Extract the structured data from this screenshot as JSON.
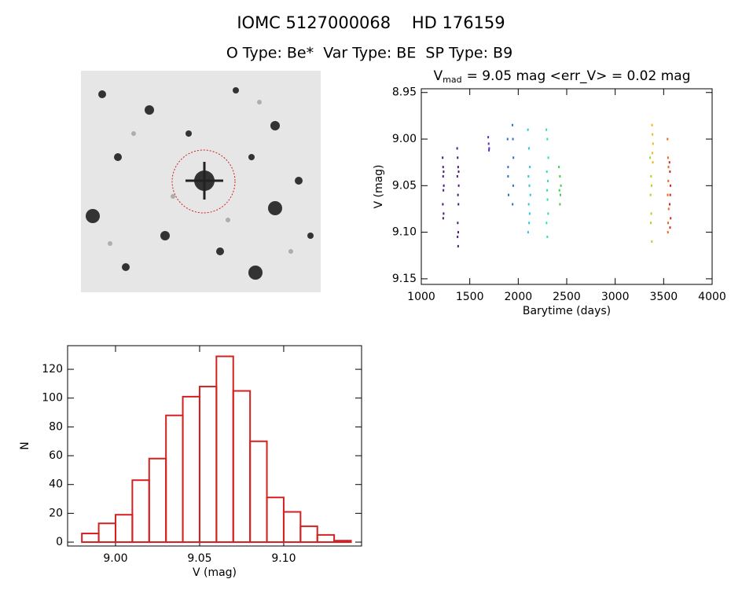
{
  "header": {
    "title": "IOMC 5127000068    HD 176159",
    "subtitle": "O Type: Be*  Var Type: BE  SP Type: B9"
  },
  "chart_data": [
    {
      "type": "scatter",
      "title": [
        "V",
        "mad",
        "= 9.05 mag <err_V> = 0.02 mag"
      ],
      "x_label": "Barytime (days)",
      "y_label": "V (mag)",
      "xlim": [
        1000,
        4000
      ],
      "xticks": [
        1000,
        1500,
        2000,
        2500,
        3000,
        3500,
        4000
      ],
      "ylim": [
        9.156,
        8.946
      ],
      "yticks": [
        8.95,
        {
          "value": 9,
          "label": "9.00"
        },
        9.05,
        {
          "value": 9.1,
          "label": "9.10"
        },
        9.15
      ],
      "series": [
        {
          "color": "#4b1a80",
          "x": [
            1220,
            1225,
            1230,
            1225,
            1232,
            1228,
            1222,
            1230,
            1226
          ],
          "values": [
            9.02,
            9.03,
            9.035,
            9.04,
            9.05,
            9.055,
            9.07,
            9.08,
            9.085
          ]
        },
        {
          "color": "#4b1a80",
          "x": [
            1370,
            1375,
            1380,
            1385,
            1372,
            1378,
            1383,
            1376,
            1381,
            1374,
            1380,
            1386
          ],
          "values": [
            9.01,
            9.02,
            9.03,
            9.035,
            9.04,
            9.06,
            9.07,
            9.09,
            9.1,
            9.105,
            9.115,
            9.05
          ]
        },
        {
          "color": "#5b2fc0",
          "x": [
            1690,
            1695,
            1700,
            1698
          ],
          "values": [
            8.998,
            9.005,
            9.01,
            9.012
          ]
        },
        {
          "color": "#2a6fd6",
          "x": [
            1890,
            1895,
            1900,
            1940,
            1945,
            1950,
            1948,
            1942,
            1895
          ],
          "values": [
            9.0,
            9.04,
            9.06,
            8.985,
            9.0,
            9.02,
            9.05,
            9.07,
            9.03
          ]
        },
        {
          "color": "#26c6e6",
          "x": [
            2100,
            2110,
            2120,
            2105,
            2115,
            2125,
            2108,
            2118,
            2112,
            2102
          ],
          "values": [
            8.99,
            9.01,
            9.03,
            9.04,
            9.05,
            9.06,
            9.07,
            9.08,
            9.09,
            9.1
          ]
        },
        {
          "color": "#30e0a0",
          "x": [
            2290,
            2300,
            2310,
            2295,
            2305,
            2298,
            2302,
            2308,
            2292,
            2300
          ],
          "values": [
            8.99,
            9.0,
            9.02,
            9.035,
            9.045,
            9.055,
            9.065,
            9.08,
            9.09,
            9.105
          ]
        },
        {
          "color": "#3cd04a",
          "x": [
            2420,
            2430,
            2440,
            2425,
            2435,
            2430
          ],
          "values": [
            9.03,
            9.04,
            9.05,
            9.055,
            9.06,
            9.07
          ]
        },
        {
          "color": "#a6d81c",
          "x": [
            3360,
            3370,
            3375,
            3365,
            3372,
            3368,
            3378
          ],
          "values": [
            9.02,
            9.04,
            9.05,
            9.06,
            9.08,
            9.09,
            9.11
          ]
        },
        {
          "color": "#f0b41c",
          "x": [
            3380,
            3385,
            3390,
            3383,
            3388
          ],
          "values": [
            8.985,
            8.995,
            9.005,
            9.015,
            9.025
          ]
        },
        {
          "color": "#ea6a18",
          "x": [
            3540,
            3545,
            3550,
            3548,
            3542,
            3552,
            3546,
            3544
          ],
          "values": [
            9.0,
            9.02,
            9.03,
            9.045,
            9.06,
            9.075,
            9.09,
            9.1
          ]
        },
        {
          "color": "#d62a12",
          "x": [
            3560,
            3565,
            3570,
            3568,
            3562,
            3572,
            3566
          ],
          "values": [
            9.025,
            9.035,
            9.05,
            9.06,
            9.07,
            9.085,
            9.095
          ]
        }
      ]
    },
    {
      "type": "histogram",
      "x_label": "V (mag)",
      "y_label": "N",
      "color": "#d42020",
      "bins": [
        8.98,
        8.99,
        9.0,
        9.01,
        9.02,
        9.03,
        9.04,
        9.05,
        9.06,
        9.07,
        9.08,
        9.09,
        9.1,
        9.11,
        9.12,
        9.13,
        9.14
      ],
      "values": [
        6,
        13,
        19,
        43,
        58,
        88,
        101,
        108,
        129,
        105,
        70,
        31,
        21,
        11,
        5,
        1
      ],
      "xlim": [
        8.9715,
        9.1463
      ],
      "xticks": [
        {
          "value": 9,
          "label": "9.00"
        },
        9.05,
        {
          "value": 9.1,
          "label": "9.10"
        }
      ],
      "ylim": [
        -2.7,
        136.4
      ],
      "yticks": [
        0,
        20,
        40,
        60,
        80,
        100,
        120
      ]
    }
  ]
}
